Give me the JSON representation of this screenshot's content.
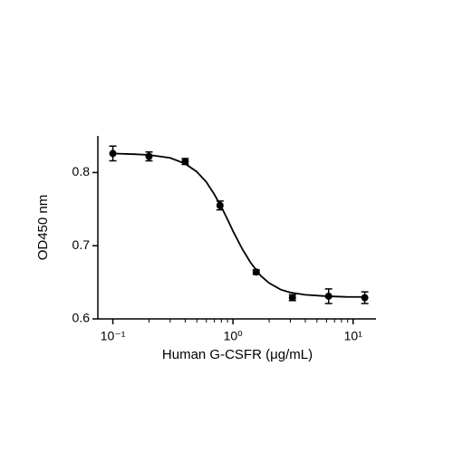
{
  "chart_data": {
    "type": "scatter",
    "xlabel": "Human G-CSFR (μg/mL)",
    "ylabel": "OD450 nm",
    "x": [
      0.1,
      0.2,
      0.4,
      0.78,
      1.56,
      3.125,
      6.25,
      12.5
    ],
    "values": [
      0.826,
      0.822,
      0.815,
      0.755,
      0.664,
      0.629,
      0.631,
      0.629
    ],
    "errors": [
      0.01,
      0.006,
      0.004,
      0.006,
      0.003,
      0.004,
      0.01,
      0.008
    ],
    "color": "#000000",
    "fit": {
      "x": [
        0.1,
        0.15,
        0.2,
        0.3,
        0.4,
        0.5,
        0.6,
        0.7,
        0.8,
        0.9,
        1.0,
        1.2,
        1.4,
        1.7,
        2,
        2.5,
        3,
        4,
        6,
        9,
        12.5
      ],
      "values": [
        0.826,
        0.825,
        0.824,
        0.82,
        0.812,
        0.801,
        0.787,
        0.77,
        0.753,
        0.736,
        0.72,
        0.695,
        0.677,
        0.659,
        0.649,
        0.64,
        0.636,
        0.633,
        0.631,
        0.63,
        0.63
      ]
    },
    "xscale": "log",
    "xlim": [
      0.075,
      15.5
    ],
    "ylim": [
      0.6,
      0.85
    ],
    "xticks": [
      {
        "value": 0.1,
        "label": "10⁻¹"
      },
      {
        "value": 1,
        "label": "10⁰"
      },
      {
        "value": 10,
        "label": "10¹"
      }
    ],
    "xminorticks": [
      0.2,
      0.3,
      0.4,
      0.5,
      0.6,
      0.7,
      0.8,
      0.9,
      2,
      3,
      4,
      5,
      6,
      7,
      8,
      9
    ],
    "yticks": [
      0.6,
      0.7,
      0.8
    ]
  }
}
